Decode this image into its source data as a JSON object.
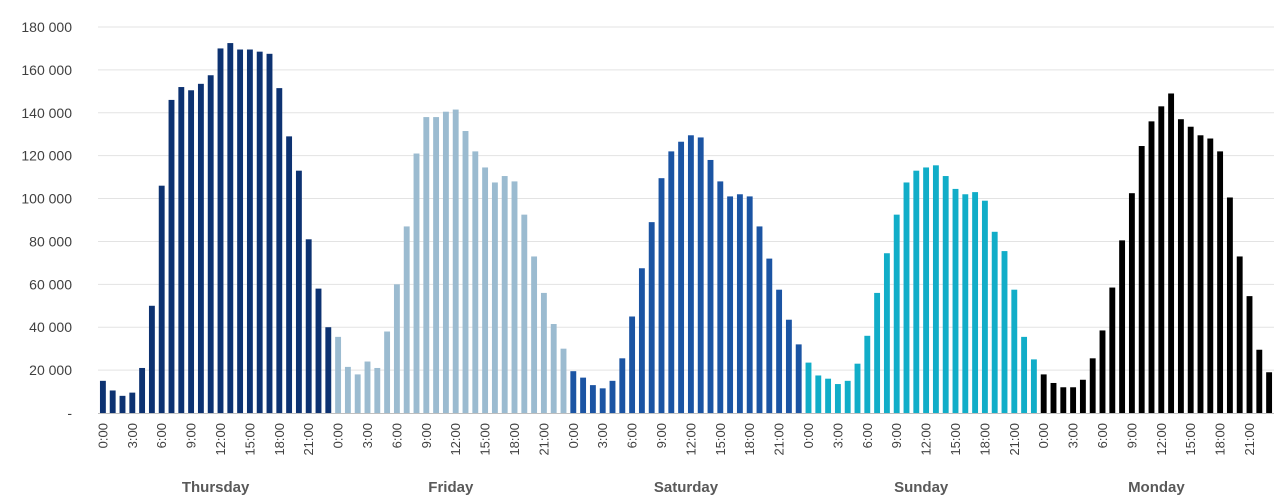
{
  "chart_data": {
    "type": "bar",
    "ylim": [
      0,
      180000
    ],
    "yticks": [
      {
        "value": 0,
        "label": "-"
      },
      {
        "value": 20000,
        "label": "20 000"
      },
      {
        "value": 40000,
        "label": "40 000"
      },
      {
        "value": 60000,
        "label": "60 000"
      },
      {
        "value": 80000,
        "label": "80 000"
      },
      {
        "value": 100000,
        "label": "100 000"
      },
      {
        "value": 120000,
        "label": "120 000"
      },
      {
        "value": 140000,
        "label": "140 000"
      },
      {
        "value": 160000,
        "label": "160 000"
      },
      {
        "value": 180000,
        "label": "180 000"
      }
    ],
    "grid": true,
    "hour_labels": [
      "0:00",
      "3:00",
      "6:00",
      "9:00",
      "12:00",
      "15:00",
      "18:00",
      "21:00"
    ],
    "groups": [
      {
        "name": "Thursday",
        "color": "#0d3271",
        "values": [
          15000,
          10500,
          8000,
          9500,
          21000,
          50000,
          106000,
          146000,
          152000,
          150500,
          153500,
          157500,
          170000,
          172500,
          169500,
          169500,
          168500,
          167500,
          151500,
          129000,
          113000,
          81000,
          58000,
          40000
        ]
      },
      {
        "name": "Friday",
        "color": "#9bbbd0",
        "values": [
          35500,
          21500,
          18000,
          24000,
          21000,
          38000,
          60000,
          87000,
          121000,
          138000,
          138000,
          140500,
          141500,
          131500,
          122000,
          114500,
          107500,
          110500,
          108000,
          92500,
          73000,
          56000,
          41500,
          30000
        ]
      },
      {
        "name": "Saturday",
        "color": "#1b54a3",
        "values": [
          19500,
          16500,
          13000,
          11500,
          15000,
          25500,
          45000,
          67500,
          89000,
          109500,
          122000,
          126500,
          129500,
          128500,
          118000,
          108000,
          101000,
          102000,
          101000,
          87000,
          72000,
          57500,
          43500,
          32000
        ]
      },
      {
        "name": "Sunday",
        "color": "#11adc8",
        "values": [
          23500,
          17500,
          16000,
          13500,
          15000,
          23000,
          36000,
          56000,
          74500,
          92500,
          107500,
          113000,
          114500,
          115500,
          110500,
          104500,
          102000,
          103000,
          99000,
          84500,
          75500,
          57500,
          35500,
          25000
        ]
      },
      {
        "name": "Monday",
        "color": "#000000",
        "values": [
          18000,
          14000,
          12000,
          12000,
          15500,
          25500,
          38500,
          58500,
          80500,
          102500,
          124500,
          136000,
          143000,
          149000,
          137000,
          133500,
          129500,
          128000,
          122000,
          100500,
          73000,
          54500,
          29500,
          19000
        ]
      }
    ]
  }
}
